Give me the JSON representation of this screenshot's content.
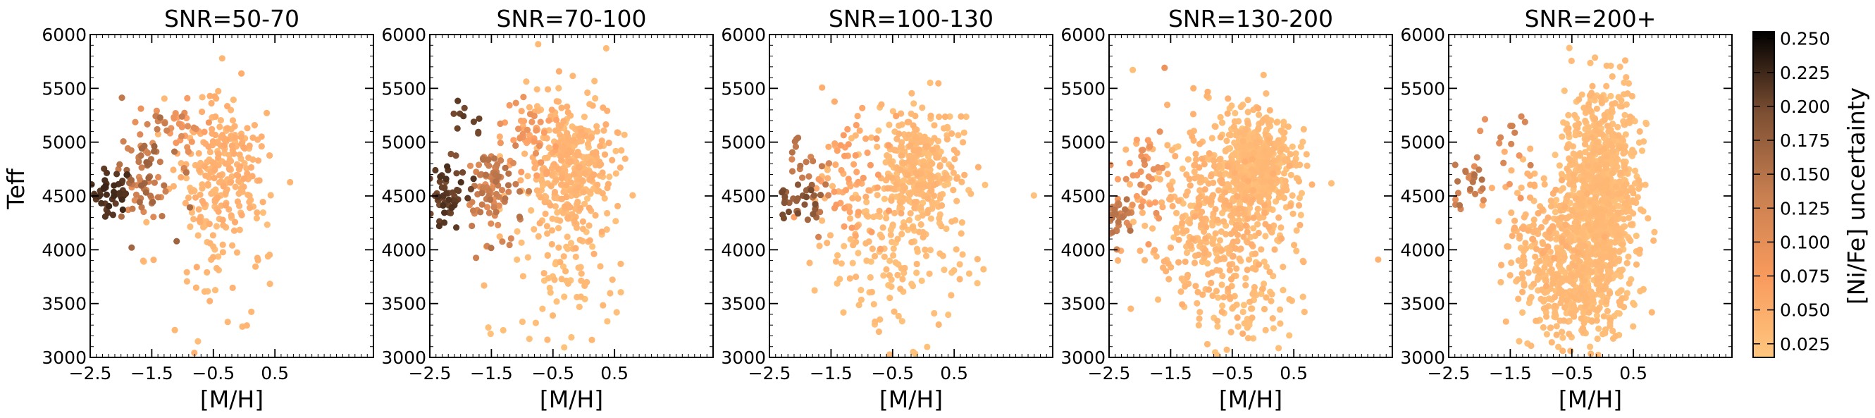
{
  "chart_data": {
    "type": "scatter",
    "x_label": "[M/H]",
    "y_label": "Teff",
    "x_ticks": [
      "−2.5",
      "−1.5",
      "−0.5",
      "0.5"
    ],
    "y_ticks": [
      "3000",
      "3500",
      "4000",
      "4500",
      "5000",
      "5500",
      "6000"
    ],
    "xlim": [
      -2.5,
      2.1
    ],
    "ylim": [
      3000,
      6000
    ],
    "colorbar": {
      "label": "[Ni/Fe] uncertainty",
      "ticks": [
        "0.250",
        "0.225",
        "0.200",
        "0.175",
        "0.150",
        "0.125",
        "0.100",
        "0.075",
        "0.050",
        "0.025"
      ],
      "range": [
        0.015,
        0.255
      ],
      "colormap": "copper (reversed)"
    },
    "panels": [
      {
        "title": "SNR=50-70",
        "clusters": [
          {
            "center": [
              -2.2,
              4550
            ],
            "spread": [
              0.2,
              100
            ],
            "count": 45,
            "err": [
              0.18,
              0.21
            ]
          },
          {
            "center": [
              -1.6,
              4700
            ],
            "spread": [
              0.25,
              280
            ],
            "count": 80,
            "err": [
              0.08,
              0.14
            ]
          },
          {
            "center": [
              -1.05,
              5150
            ],
            "spread": [
              0.18,
              140
            ],
            "count": 30,
            "err": [
              0.06,
              0.09
            ]
          },
          {
            "center": [
              -0.4,
              4750
            ],
            "spread": [
              0.35,
              320
            ],
            "count": 220,
            "err": [
              0.03,
              0.05
            ]
          },
          {
            "center": [
              -0.5,
              4200
            ],
            "spread": [
              0.55,
              500
            ],
            "count": 70,
            "err": [
              0.025,
              0.04
            ]
          }
        ]
      },
      {
        "title": "SNR=70-100",
        "clusters": [
          {
            "center": [
              -2.3,
              4500
            ],
            "spread": [
              0.2,
              140
            ],
            "count": 55,
            "err": [
              0.16,
              0.2
            ]
          },
          {
            "center": [
              -1.9,
              5100
            ],
            "spread": [
              0.15,
              220
            ],
            "count": 12,
            "err": [
              0.15,
              0.19
            ]
          },
          {
            "center": [
              -1.5,
              4600
            ],
            "spread": [
              0.22,
              200
            ],
            "count": 90,
            "err": [
              0.08,
              0.12
            ]
          },
          {
            "center": [
              -0.9,
              5050
            ],
            "spread": [
              0.25,
              180
            ],
            "count": 45,
            "err": [
              0.05,
              0.08
            ]
          },
          {
            "center": [
              -0.2,
              4750
            ],
            "spread": [
              0.35,
              330
            ],
            "count": 350,
            "err": [
              0.025,
              0.045
            ]
          },
          {
            "center": [
              -0.3,
              4000
            ],
            "spread": [
              0.5,
              550
            ],
            "count": 100,
            "err": [
              0.02,
              0.035
            ]
          }
        ]
      },
      {
        "title": "SNR=100-130",
        "clusters": [
          {
            "center": [
              -2.05,
              4450
            ],
            "spread": [
              0.2,
              100
            ],
            "count": 30,
            "err": [
              0.13,
              0.17
            ]
          },
          {
            "center": [
              -1.8,
              4650
            ],
            "spread": [
              0.18,
              200
            ],
            "count": 25,
            "err": [
              0.09,
              0.12
            ]
          },
          {
            "center": [
              -1.2,
              4650
            ],
            "spread": [
              0.3,
              300
            ],
            "count": 70,
            "err": [
              0.04,
              0.07
            ]
          },
          {
            "center": [
              -0.05,
              4750
            ],
            "spread": [
              0.3,
              280
            ],
            "count": 300,
            "err": [
              0.02,
              0.04
            ]
          },
          {
            "center": [
              -0.5,
              4100
            ],
            "spread": [
              0.6,
              500
            ],
            "count": 200,
            "err": [
              0.02,
              0.035
            ]
          }
        ]
      },
      {
        "title": "SNR=130-200",
        "clusters": [
          {
            "center": [
              -2.35,
              4300
            ],
            "spread": [
              0.12,
              100
            ],
            "count": 35,
            "err": [
              0.09,
              0.12
            ]
          },
          {
            "center": [
              -1.9,
              4700
            ],
            "spread": [
              0.25,
              300
            ],
            "count": 40,
            "err": [
              0.06,
              0.09
            ]
          },
          {
            "center": [
              -0.1,
              4800
            ],
            "spread": [
              0.3,
              230
            ],
            "count": 450,
            "err": [
              0.02,
              0.035
            ]
          },
          {
            "center": [
              -0.7,
              4300
            ],
            "spread": [
              0.6,
              430
            ],
            "count": 450,
            "err": [
              0.02,
              0.045
            ]
          },
          {
            "center": [
              -0.2,
              3450
            ],
            "spread": [
              0.45,
              200
            ],
            "count": 50,
            "err": [
              0.02,
              0.035
            ]
          }
        ]
      },
      {
        "title": "SNR=200+",
        "clusters": [
          {
            "center": [
              -2.2,
              4600
            ],
            "spread": [
              0.2,
              130
            ],
            "count": 28,
            "err": [
              0.08,
              0.12
            ]
          },
          {
            "center": [
              -1.6,
              4900
            ],
            "spread": [
              0.25,
              200
            ],
            "count": 15,
            "err": [
              0.07,
              0.1
            ]
          },
          {
            "center": [
              -0.05,
              4500
            ],
            "spread": [
              0.3,
              500
            ],
            "count": 900,
            "err": [
              0.02,
              0.035
            ]
          },
          {
            "center": [
              -0.5,
              3700
            ],
            "spread": [
              0.4,
              320
            ],
            "count": 350,
            "err": [
              0.02,
              0.035
            ]
          },
          {
            "center": [
              -1.0,
              4200
            ],
            "spread": [
              0.4,
              300
            ],
            "count": 120,
            "err": [
              0.025,
              0.045
            ]
          }
        ]
      }
    ]
  }
}
